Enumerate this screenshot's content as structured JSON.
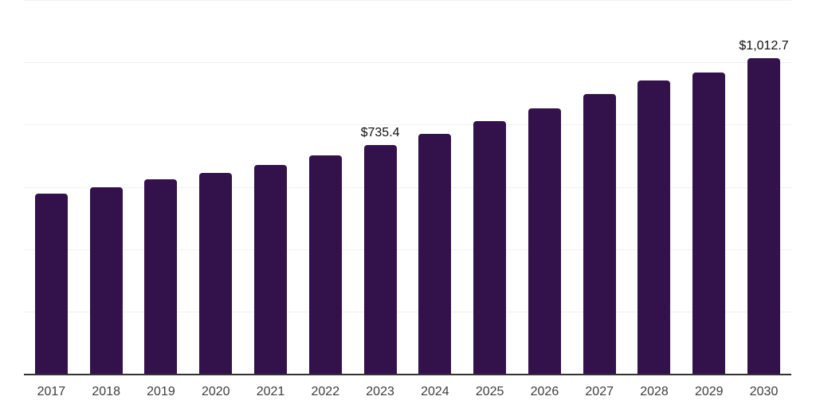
{
  "chart_data": {
    "type": "bar",
    "title": "",
    "xlabel": "",
    "ylabel": "",
    "categories": [
      "2017",
      "2018",
      "2019",
      "2020",
      "2021",
      "2022",
      "2023",
      "2024",
      "2025",
      "2026",
      "2027",
      "2028",
      "2029",
      "2030"
    ],
    "values": [
      579.4,
      599.8,
      625.3,
      645.7,
      671.3,
      701.9,
      735.4,
      770.8,
      811.6,
      852.5,
      898.4,
      941.8,
      967.3,
      1012.7
    ],
    "data_labels": {
      "2023": "$735.4",
      "2030": "$1,012.7"
    },
    "ylim": [
      0,
      1200
    ],
    "grid_step": 200,
    "grid": "horizontal-only",
    "legend": "none",
    "y_tick_labels": "none",
    "colors": {
      "bar": "#33114a",
      "grid": "#f1f1f1",
      "axis": "#333333",
      "tick_label": "#3d3d3d",
      "data_label": "#0f0f0f",
      "background": "#ffffff"
    }
  }
}
